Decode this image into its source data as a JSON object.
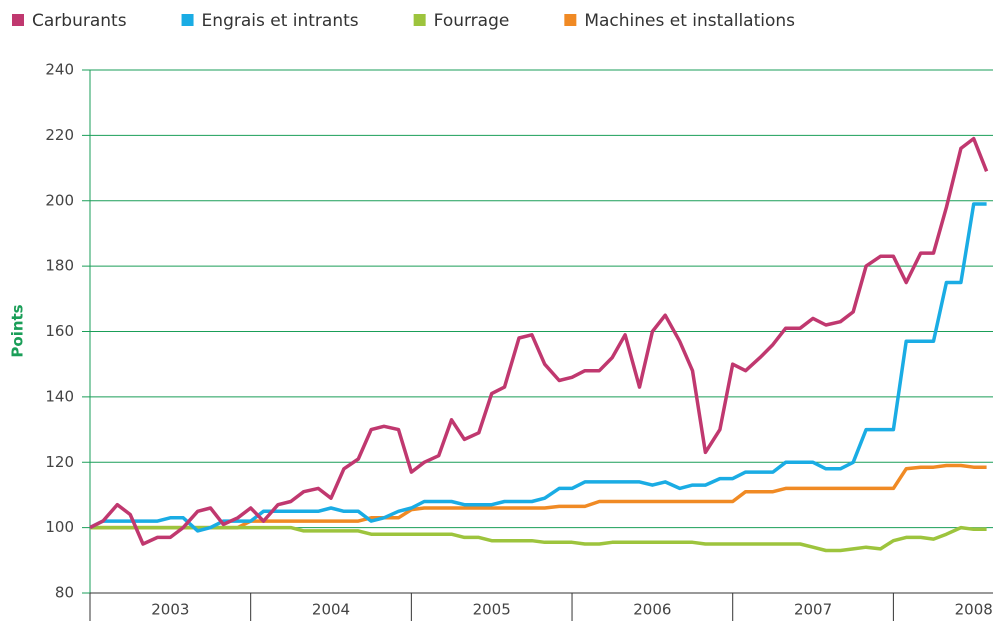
{
  "chart_data": {
    "type": "line",
    "y_label": "Points",
    "legend": "top",
    "grid": true,
    "ylim": [
      80,
      240
    ],
    "yticks": [
      80,
      100,
      120,
      140,
      160,
      180,
      200,
      220,
      240
    ],
    "xlim": [
      2003,
      2008.62
    ],
    "xticks": [
      {
        "value": 2003.5,
        "label": "2003"
      },
      {
        "value": 2004.5,
        "label": "2004"
      },
      {
        "value": 2005.5,
        "label": "2005"
      },
      {
        "value": 2006.5,
        "label": "2006"
      },
      {
        "value": 2007.5,
        "label": "2007"
      },
      {
        "value": 2008.5,
        "label": "2008"
      }
    ],
    "xminor": [
      2003,
      2004,
      2005,
      2006,
      2007,
      2008
    ],
    "x": [
      2003,
      2003.08,
      2003.17,
      2003.25,
      2003.33,
      2003.42,
      2003.5,
      2003.58,
      2003.67,
      2003.75,
      2003.83,
      2003.92,
      2004,
      2004.08,
      2004.17,
      2004.25,
      2004.33,
      2004.42,
      2004.5,
      2004.58,
      2004.67,
      2004.75,
      2004.83,
      2004.92,
      2005,
      2005.08,
      2005.17,
      2005.25,
      2005.33,
      2005.42,
      2005.5,
      2005.58,
      2005.67,
      2005.75,
      2005.83,
      2005.92,
      2006,
      2006.08,
      2006.17,
      2006.25,
      2006.33,
      2006.42,
      2006.5,
      2006.58,
      2006.67,
      2006.75,
      2006.83,
      2006.92,
      2007,
      2007.08,
      2007.17,
      2007.25,
      2007.33,
      2007.42,
      2007.5,
      2007.58,
      2007.67,
      2007.75,
      2007.83,
      2007.92,
      2008,
      2008.08,
      2008.17,
      2008.25,
      2008.33,
      2008.42,
      2008.5,
      2008.58
    ],
    "series": [
      {
        "name": "Carburants",
        "color": "#c0386f",
        "values": [
          100,
          102,
          107,
          104,
          95,
          97,
          97,
          100,
          105,
          106,
          101,
          103,
          106,
          102,
          107,
          108,
          111,
          112,
          109,
          118,
          121,
          130,
          131,
          130,
          117,
          120,
          122,
          133,
          127,
          129,
          141,
          143,
          158,
          159,
          150,
          145,
          146,
          148,
          148,
          152,
          159,
          143,
          160,
          165,
          157,
          148,
          123,
          130,
          150,
          148,
          152,
          156,
          161,
          161,
          164,
          162,
          163,
          166,
          180,
          183,
          183,
          175,
          184,
          184,
          198,
          216,
          219,
          209
        ]
      },
      {
        "name": "Engrais et intrants",
        "color": "#1aace4",
        "values": [
          100,
          102,
          102,
          102,
          102,
          102,
          103,
          103,
          99,
          100,
          102,
          102,
          102,
          105,
          105,
          105,
          105,
          105,
          106,
          105,
          105,
          102,
          103,
          105,
          106,
          108,
          108,
          108,
          107,
          107,
          107,
          108,
          108,
          108,
          109,
          112,
          112,
          114,
          114,
          114,
          114,
          114,
          113,
          114,
          112,
          113,
          113,
          115,
          115,
          117,
          117,
          117,
          120,
          120,
          120,
          118,
          118,
          120,
          130,
          130,
          130,
          157,
          157,
          157,
          175,
          175,
          199,
          199
        ]
      },
      {
        "name": "Fourrage",
        "color": "#9dc43d",
        "values": [
          100,
          100,
          100,
          100,
          100,
          100,
          100,
          100,
          100,
          100,
          100,
          100,
          100,
          100,
          100,
          100,
          99,
          99,
          99,
          99,
          99,
          98,
          98,
          98,
          98,
          98,
          98,
          98,
          97,
          97,
          96,
          96,
          96,
          96,
          95.5,
          95.5,
          95.5,
          95,
          95,
          95.5,
          95.5,
          95.5,
          95.5,
          95.5,
          95.5,
          95.5,
          95,
          95,
          95,
          95,
          95,
          95,
          95,
          95,
          94,
          93,
          93,
          93.5,
          94,
          93.5,
          96,
          97,
          97,
          96.5,
          98,
          100,
          99.5,
          99.5
        ]
      },
      {
        "name": "Machines et installations",
        "color": "#f08a24",
        "values": [
          100,
          100,
          100,
          100,
          100,
          100,
          100,
          100,
          100,
          100,
          100,
          100,
          102,
          102,
          102,
          102,
          102,
          102,
          102,
          102,
          102,
          103,
          103,
          103,
          105.5,
          106,
          106,
          106,
          106,
          106,
          106,
          106,
          106,
          106,
          106,
          106.5,
          106.5,
          106.5,
          108,
          108,
          108,
          108,
          108,
          108,
          108,
          108,
          108,
          108,
          108,
          111,
          111,
          111,
          112,
          112,
          112,
          112,
          112,
          112,
          112,
          112,
          112,
          118,
          118.5,
          118.5,
          119,
          119,
          118.5,
          118.5
        ]
      }
    ]
  }
}
